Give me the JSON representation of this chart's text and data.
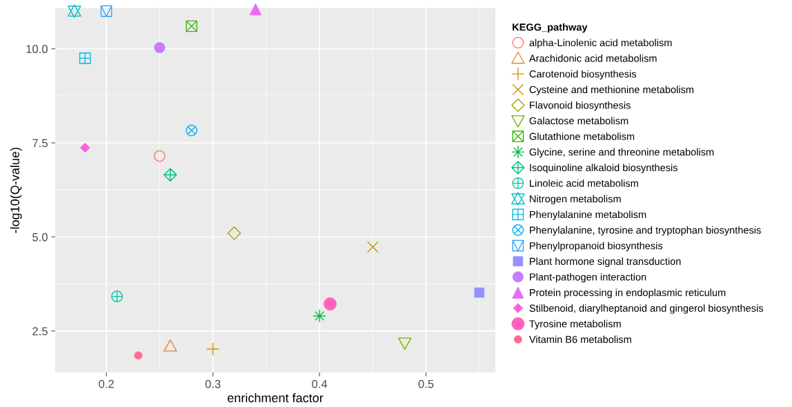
{
  "chart_data": {
    "type": "scatter",
    "xlabel": "enrichment factor",
    "ylabel": "-log10(Q-value)",
    "legend_title": "KEGG_pathway",
    "legend": "right",
    "grid": true,
    "xlim": [
      0.152,
      0.565
    ],
    "ylim": [
      1.4,
      11.08
    ],
    "xticks": [
      0.2,
      0.3,
      0.4,
      0.5
    ],
    "yticks": [
      2.5,
      {
        "value": 5,
        "label": "5.0"
      },
      7.5,
      {
        "value": 10,
        "label": "10.0"
      }
    ],
    "series": [
      {
        "name": "alpha-Linolenic acid metabolism",
        "color": "#F8766D",
        "x": [
          0.25
        ],
        "values": [
          7.15
        ]
      },
      {
        "name": "Arachidonic acid metabolism",
        "color": "#EA8331",
        "x": [
          0.26
        ],
        "values": [
          2.1
        ]
      },
      {
        "name": "Carotenoid biosynthesis",
        "color": "#D89000",
        "x": [
          0.3
        ],
        "values": [
          2.02
        ]
      },
      {
        "name": "Cysteine and methionine metabolism",
        "color": "#C09B00",
        "x": [
          0.45
        ],
        "values": [
          4.73
        ]
      },
      {
        "name": "Flavonoid biosynthesis",
        "color": "#A3A500",
        "x": [
          0.32
        ],
        "values": [
          5.1
        ]
      },
      {
        "name": "Galactose metabolism",
        "color": "#7CAE00",
        "x": [
          0.48
        ],
        "values": [
          2.18
        ]
      },
      {
        "name": "Glutathione metabolism",
        "color": "#39B600",
        "x": [
          0.28
        ],
        "values": [
          10.6
        ]
      },
      {
        "name": "Glycine, serine and threonine metabolism",
        "color": "#00BB4E",
        "x": [
          0.4
        ],
        "values": [
          2.9
        ]
      },
      {
        "name": "Isoquinoline alkaloid biosynthesis",
        "color": "#00BF7D",
        "x": [
          0.26
        ],
        "values": [
          6.65
        ]
      },
      {
        "name": "Linoleic acid metabolism",
        "color": "#00C1A3",
        "x": [
          0.21
        ],
        "values": [
          3.42
        ]
      },
      {
        "name": "Nitrogen metabolism",
        "color": "#00BFC4",
        "x": [
          0.17
        ],
        "values": [
          11.0
        ]
      },
      {
        "name": "Phenylalanine metabolism",
        "color": "#00BAE0",
        "x": [
          0.18
        ],
        "values": [
          9.75
        ]
      },
      {
        "name": "Phenylalanine, tyrosine and tryptophan biosynthesis",
        "color": "#00B0F6",
        "x": [
          0.28
        ],
        "values": [
          7.83
        ]
      },
      {
        "name": "Phenylpropanoid biosynthesis",
        "color": "#35A2FF",
        "x": [
          0.2
        ],
        "values": [
          11.0
        ]
      },
      {
        "name": "Plant hormone signal transduction",
        "color": "#9590FF",
        "x": [
          0.55
        ],
        "values": [
          3.52
        ]
      },
      {
        "name": "Plant-pathogen interaction",
        "color": "#C77CFF",
        "x": [
          0.25
        ],
        "values": [
          10.03
        ]
      },
      {
        "name": "Protein processing in endoplasmic reticulum",
        "color": "#E76BF3",
        "x": [
          0.34
        ],
        "values": [
          11.05
        ]
      },
      {
        "name": "Stilbenoid, diarylheptanoid and gingerol biosynthesis",
        "color": "#FA62DB",
        "x": [
          0.18
        ],
        "values": [
          7.37
        ]
      },
      {
        "name": "Tyrosine metabolism",
        "color": "#FF62BC",
        "x": [
          0.41
        ],
        "values": [
          3.22
        ]
      },
      {
        "name": "Vitamin B6 metabolism",
        "color": "#FF6C91",
        "x": [
          0.23
        ],
        "values": [
          1.85
        ]
      }
    ]
  }
}
